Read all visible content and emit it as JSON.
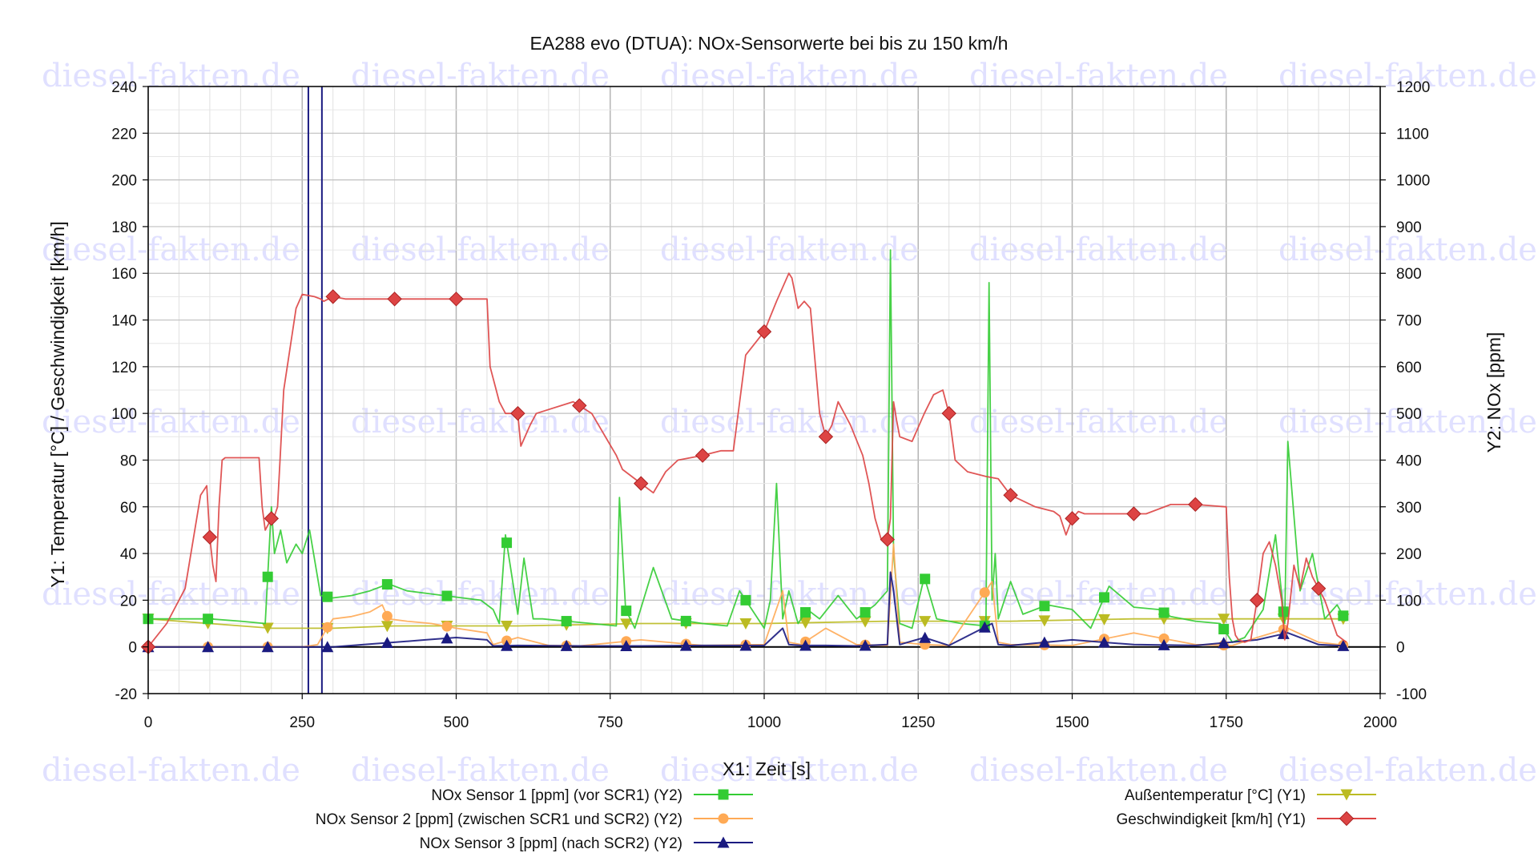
{
  "watermark": "diesel-fakten.de",
  "chart_data": {
    "type": "line",
    "title": "EA288 evo (DTUA): NOx-Sensorwerte bei bis zu 150 km/h",
    "xlabel": "X1: Zeit [s]",
    "y1label": "Y1: Temperatur [°C] / Geschwindigkeit [km/h]",
    "y2label": "Y2: NOx [ppm]",
    "xlim": [
      0,
      2000
    ],
    "y1lim": [
      -20,
      240
    ],
    "y2lim": [
      -100,
      1200
    ],
    "xticks": [
      "0",
      "250",
      "500",
      "750",
      "1000",
      "1250",
      "1500",
      "1750",
      "2000"
    ],
    "y1ticks": [
      "-20",
      "0",
      "20",
      "40",
      "60",
      "80",
      "100",
      "120",
      "140",
      "160",
      "180",
      "200",
      "220",
      "240"
    ],
    "y2ticks": [
      "-100",
      "0",
      "100",
      "200",
      "300",
      "400",
      "500",
      "600",
      "700",
      "800",
      "900",
      "1000",
      "1100",
      "1200"
    ],
    "grid": true,
    "legend_position": "bottom",
    "vertical_markers": [
      260,
      282
    ],
    "series": [
      {
        "name": "NOx Sensor 1 [ppm] (vor SCR1) (Y2)",
        "axis": "y2",
        "color": "#33cc33",
        "marker": "square",
        "x": [
          0,
          100,
          150,
          190,
          200,
          205,
          215,
          225,
          240,
          250,
          262,
          280,
          300,
          330,
          360,
          390,
          420,
          450,
          480,
          510,
          540,
          560,
          570,
          580,
          600,
          610,
          625,
          640,
          680,
          720,
          760,
          765,
          775,
          790,
          820,
          850,
          900,
          940,
          960,
          980,
          1000,
          1010,
          1020,
          1030,
          1040,
          1055,
          1070,
          1090,
          1120,
          1150,
          1180,
          1200,
          1205,
          1210,
          1220,
          1240,
          1260,
          1280,
          1320,
          1360,
          1365,
          1370,
          1375,
          1380,
          1400,
          1420,
          1460,
          1500,
          1530,
          1560,
          1600,
          1640,
          1660,
          1700,
          1740,
          1755,
          1760,
          1780,
          1810,
          1830,
          1845,
          1850,
          1870,
          1890,
          1910,
          1930,
          1945
        ],
        "values": [
          60,
          60,
          55,
          50,
          300,
          200,
          250,
          180,
          220,
          200,
          250,
          110,
          105,
          110,
          120,
          135,
          120,
          115,
          110,
          105,
          100,
          80,
          50,
          240,
          70,
          190,
          60,
          60,
          55,
          50,
          45,
          320,
          80,
          40,
          170,
          60,
          50,
          45,
          120,
          80,
          40,
          100,
          350,
          60,
          120,
          50,
          80,
          60,
          110,
          60,
          90,
          120,
          850,
          200,
          50,
          40,
          150,
          60,
          50,
          45,
          780,
          100,
          200,
          60,
          140,
          70,
          90,
          80,
          40,
          130,
          85,
          80,
          65,
          55,
          50,
          20,
          10,
          20,
          80,
          240,
          50,
          440,
          120,
          200,
          60,
          90,
          55
        ]
      },
      {
        "name": "NOx Sensor 2 [ppm] (zwischen SCR1 und SCR2) (Y2)",
        "axis": "y2",
        "color": "#ffaa55",
        "marker": "circle",
        "x": [
          0,
          200,
          250,
          275,
          290,
          300,
          330,
          360,
          380,
          390,
          420,
          460,
          500,
          550,
          560,
          600,
          650,
          700,
          800,
          900,
          1000,
          1030,
          1040,
          1060,
          1100,
          1150,
          1200,
          1210,
          1220,
          1260,
          1300,
          1370,
          1380,
          1400,
          1500,
          1600,
          1700,
          1760,
          1800,
          1850,
          1900,
          1945
        ],
        "values": [
          0,
          0,
          0,
          5,
          40,
          60,
          65,
          75,
          90,
          60,
          55,
          50,
          40,
          30,
          5,
          20,
          3,
          2,
          15,
          3,
          5,
          120,
          10,
          5,
          40,
          5,
          3,
          220,
          10,
          5,
          3,
          140,
          10,
          5,
          3,
          30,
          5,
          3,
          20,
          40,
          10,
          3
        ]
      },
      {
        "name": "NOx Sensor 3 [ppm] (nach SCR2) (Y2)",
        "axis": "y2",
        "color": "#1a1a80",
        "marker": "triangle-up",
        "x": [
          0,
          250,
          300,
          350,
          400,
          450,
          500,
          550,
          560,
          600,
          700,
          800,
          900,
          1000,
          1030,
          1040,
          1060,
          1100,
          1150,
          1200,
          1205,
          1210,
          1220,
          1260,
          1300,
          1370,
          1380,
          1400,
          1500,
          1600,
          1700,
          1800,
          1850,
          1900,
          1945
        ],
        "values": [
          0,
          0,
          0,
          5,
          10,
          15,
          20,
          15,
          2,
          3,
          2,
          2,
          3,
          3,
          40,
          5,
          3,
          3,
          2,
          5,
          160,
          120,
          5,
          20,
          3,
          50,
          5,
          3,
          15,
          5,
          3,
          15,
          30,
          5,
          2
        ]
      },
      {
        "name": "Außentemperatur [°C] (Y1)",
        "axis": "y1",
        "color": "#bbbb22",
        "marker": "triangle-down",
        "x": [
          0,
          100,
          200,
          300,
          400,
          500,
          600,
          800,
          1000,
          1200,
          1400,
          1600,
          1800,
          1945
        ],
        "values": [
          12,
          10,
          8,
          8,
          9,
          9,
          9,
          10,
          10,
          11,
          11,
          12,
          12,
          12
        ]
      },
      {
        "name": "Geschwindigkeit [km/h] (Y1)",
        "axis": "y1",
        "color": "#dd4444",
        "marker": "diamond",
        "x": [
          0,
          30,
          60,
          85,
          95,
          100,
          105,
          110,
          115,
          120,
          125,
          180,
          185,
          190,
          200,
          205,
          210,
          220,
          240,
          250,
          270,
          280,
          285,
          300,
          320,
          400,
          480,
          550,
          555,
          570,
          580,
          600,
          605,
          620,
          630,
          690,
          720,
          760,
          770,
          800,
          820,
          840,
          860,
          900,
          930,
          950,
          970,
          1000,
          1020,
          1040,
          1045,
          1055,
          1065,
          1075,
          1090,
          1100,
          1110,
          1120,
          1140,
          1160,
          1170,
          1180,
          1190,
          1200,
          1205,
          1210,
          1215,
          1220,
          1240,
          1260,
          1275,
          1290,
          1300,
          1310,
          1330,
          1360,
          1380,
          1400,
          1440,
          1470,
          1480,
          1490,
          1500,
          1510,
          1520,
          1560,
          1620,
          1660,
          1700,
          1750,
          1755,
          1760,
          1765,
          1770,
          1780,
          1790,
          1800,
          1810,
          1820,
          1830,
          1840,
          1845,
          1850,
          1860,
          1870,
          1880,
          1890,
          1910,
          1930,
          1945
        ],
        "values": [
          0,
          10,
          25,
          65,
          69,
          47,
          35,
          28,
          60,
          80,
          81,
          81,
          60,
          50,
          55,
          56,
          60,
          110,
          145,
          151,
          150,
          149,
          148,
          150,
          149,
          149,
          149,
          149,
          120,
          105,
          100,
          100,
          86,
          95,
          100,
          105,
          100,
          82,
          76,
          70,
          66,
          75,
          80,
          82,
          84,
          84,
          125,
          135,
          148,
          160,
          158,
          145,
          148,
          145,
          100,
          90,
          95,
          105,
          95,
          82,
          70,
          55,
          46,
          46,
          55,
          105,
          97,
          90,
          88,
          100,
          108,
          110,
          100,
          80,
          75,
          73,
          72,
          65,
          60,
          58,
          56,
          48,
          55,
          58,
          57,
          57,
          57,
          61,
          61,
          60,
          30,
          12,
          5,
          3,
          2,
          3,
          20,
          40,
          45,
          35,
          20,
          3,
          10,
          35,
          25,
          38,
          30,
          20,
          5,
          2
        ]
      }
    ]
  }
}
